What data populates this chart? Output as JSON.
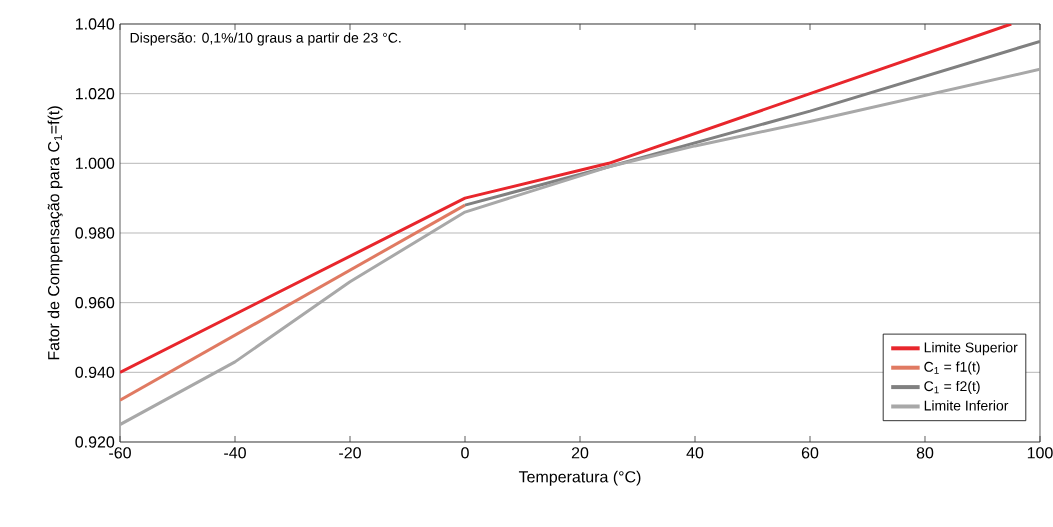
{
  "chart_data": {
    "type": "line",
    "xlabel": "Temperatura (°C)",
    "ylabel": "Fator de Compensação para C$_{1}$=f(t)",
    "annotations": [
      "Dispersão: 0,1%/10 graus a partir de 23 °C."
    ],
    "series": [
      {
        "name": "Limite Superior",
        "color": "#e8262c",
        "x": [
          -60,
          0,
          25,
          60,
          95
        ],
        "values": [
          0.94,
          0.99,
          1.0,
          1.02,
          1.04
        ]
      },
      {
        "name": "C$_{1}$ = f1(t)",
        "color": "#e07a62",
        "x": [
          -60,
          0
        ],
        "values": [
          0.932,
          0.988
        ]
      },
      {
        "name": "C$_{1}$ = f2(t)",
        "color": "#808080",
        "x": [
          0,
          25,
          60,
          100
        ],
        "values": [
          0.988,
          0.999,
          1.015,
          1.035
        ]
      },
      {
        "name": "Limite Inferior",
        "color": "#a8a8a8",
        "x": [
          -60,
          -40,
          -20,
          -10,
          0,
          25,
          40,
          60,
          100
        ],
        "values": [
          0.925,
          0.943,
          0.966,
          0.976,
          0.986,
          0.999,
          1.005,
          1.012,
          1.027
        ]
      }
    ],
    "xlim": [
      -60,
      100
    ],
    "ylim": [
      0.92,
      1.04
    ],
    "xticks": [
      -60,
      -40,
      -20,
      0,
      20,
      40,
      60,
      80,
      100
    ],
    "yticks": [
      {
        "value": 0.92,
        "label": "0.920"
      },
      {
        "value": 0.94,
        "label": "0.940"
      },
      {
        "value": 0.96,
        "label": "0.960"
      },
      {
        "value": 0.98,
        "label": "0.980"
      },
      {
        "value": 1.0,
        "label": "1.000"
      },
      {
        "value": 1.02,
        "label": "1.020"
      },
      {
        "value": 1.04,
        "label": "1.040"
      }
    ],
    "grid": "y",
    "legend": "bottom right",
    "marker": "none",
    "line_style": "solid"
  }
}
